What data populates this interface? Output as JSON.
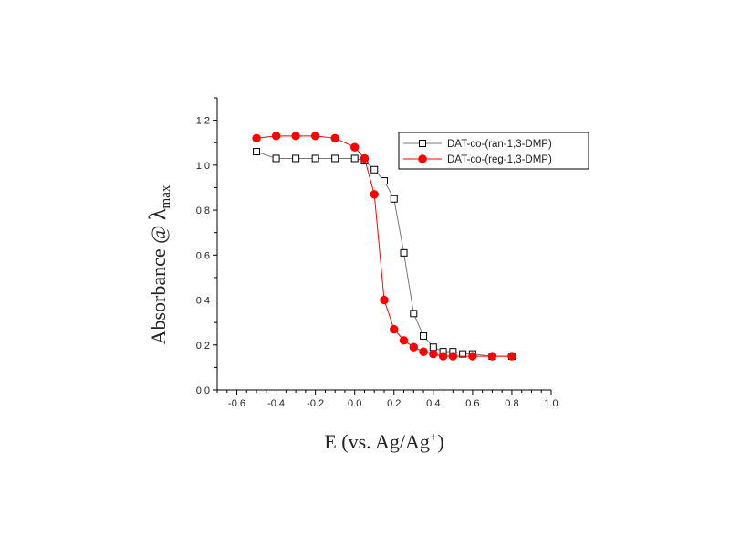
{
  "chart_data": {
    "type": "line",
    "title": "",
    "xlabel": "E (vs. Ag/Ag",
    "xlabel_sup": "+",
    "xlabel_close": ")",
    "ylabel": "Absorbance @ ",
    "ylabel_lambda": "λ",
    "ylabel_sub": "max",
    "xlim": [
      -0.7,
      1.0
    ],
    "ylim": [
      0.0,
      1.3
    ],
    "xticks": [
      "-0.6",
      "-0.4",
      "-0.2",
      "0.0",
      "0.2",
      "0.4",
      "0.6",
      "0.8",
      "1.0"
    ],
    "yticks": [
      "0.0",
      "0.2",
      "0.4",
      "0.6",
      "0.8",
      "1.0",
      "1.2"
    ],
    "grid": false,
    "legend_position": "top-right",
    "series": [
      {
        "name": "DAT-co-(ran-1,3-DMP)",
        "color": "#777777",
        "marker": "open-square",
        "x": [
          -0.5,
          -0.4,
          -0.3,
          -0.2,
          -0.1,
          0.0,
          0.05,
          0.1,
          0.15,
          0.2,
          0.25,
          0.3,
          0.35,
          0.4,
          0.45,
          0.5,
          0.55,
          0.6,
          0.7,
          0.8
        ],
        "y": [
          1.06,
          1.03,
          1.03,
          1.03,
          1.03,
          1.03,
          1.02,
          0.98,
          0.93,
          0.85,
          0.61,
          0.34,
          0.24,
          0.19,
          0.17,
          0.17,
          0.16,
          0.16,
          0.15,
          0.15
        ]
      },
      {
        "name": "DAT-co-(reg-1,3-DMP)",
        "color": "#ff0000",
        "marker": "filled-circle",
        "x": [
          -0.5,
          -0.4,
          -0.3,
          -0.2,
          -0.1,
          0.0,
          0.05,
          0.1,
          0.15,
          0.2,
          0.25,
          0.3,
          0.35,
          0.4,
          0.45,
          0.5,
          0.6,
          0.7,
          0.8
        ],
        "y": [
          1.12,
          1.13,
          1.13,
          1.13,
          1.12,
          1.08,
          1.03,
          0.87,
          0.4,
          0.27,
          0.22,
          0.19,
          0.17,
          0.16,
          0.15,
          0.15,
          0.15,
          0.15,
          0.15
        ]
      }
    ]
  }
}
